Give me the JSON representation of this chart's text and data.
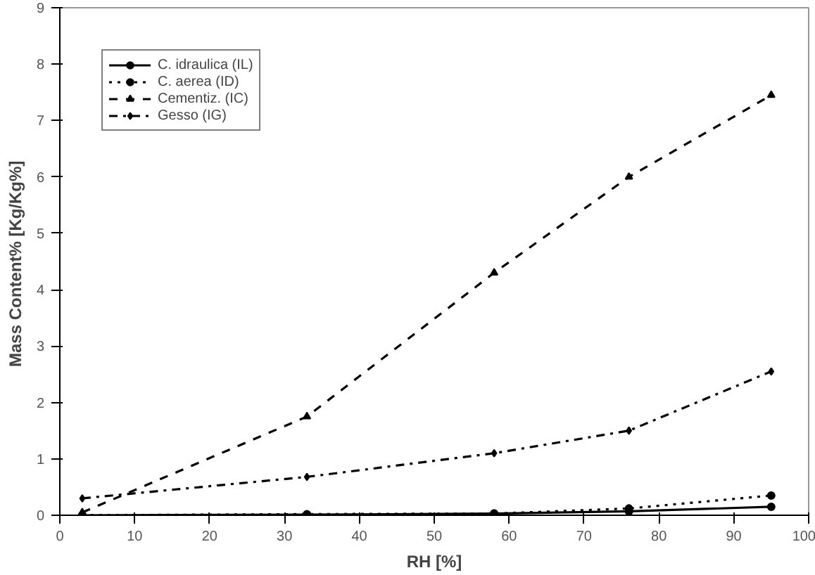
{
  "chart_data": {
    "type": "line",
    "xlabel": "RH [%]",
    "ylabel": "Mass Content%  [Kg/Kg%]",
    "x": [
      3,
      33,
      58,
      76,
      95
    ],
    "xlim": [
      0,
      100
    ],
    "xticks": [
      0,
      10,
      20,
      30,
      40,
      50,
      60,
      70,
      80,
      90,
      100
    ],
    "ylim": [
      0,
      9
    ],
    "yticks": [
      0,
      1,
      2,
      3,
      4,
      5,
      6,
      7,
      8,
      9
    ],
    "grid": false,
    "legend": "top left",
    "series": [
      {
        "name": "C. idraulica (IL)",
        "color": "#000000",
        "line_style": "solid",
        "marker": "circle",
        "values": [
          0,
          0.01,
          0.03,
          0.07,
          0.15
        ]
      },
      {
        "name": "C. aerea (ID)",
        "color": "#000000",
        "line_style": "dotted",
        "marker": "circle",
        "values": [
          0,
          0.02,
          0.03,
          0.12,
          0.35
        ]
      },
      {
        "name": "Cementiz. (IC)",
        "color": "#000000",
        "line_style": "dashed",
        "marker": "triangle",
        "values": [
          0.05,
          1.75,
          4.3,
          6.0,
          7.45
        ]
      },
      {
        "name": "Gesso (IG)",
        "color": "#000000",
        "line_style": "dashdot",
        "marker": "diamond",
        "values": [
          0.3,
          0.68,
          1.1,
          1.5,
          2.55
        ]
      }
    ]
  }
}
